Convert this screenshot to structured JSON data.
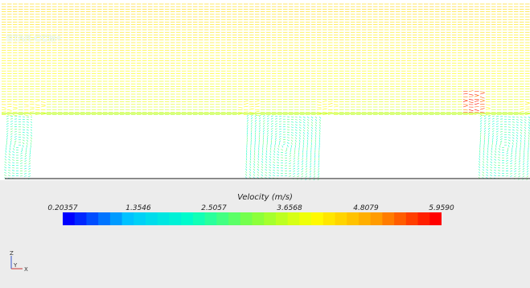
{
  "watermark": "STAR-CCM+",
  "legend": {
    "title": "Velocity (m/s)",
    "min": 0.20357,
    "max": 5.959,
    "tick_labels": [
      "0.20357",
      "1.3546",
      "2.5057",
      "3.6568",
      "4.8079",
      "5.9590"
    ],
    "segments": 32,
    "colormap": [
      "#0000ff",
      "#00c8ff",
      "#00ffc8",
      "#80ff40",
      "#ffff00",
      "#ffa000",
      "#ff0000"
    ]
  },
  "axes": {
    "vertical": "Y",
    "horizontal": "X",
    "out": "Z"
  },
  "colors": {
    "background": "#ececec",
    "viewport": "#ffffff",
    "ground": "#444444"
  }
}
